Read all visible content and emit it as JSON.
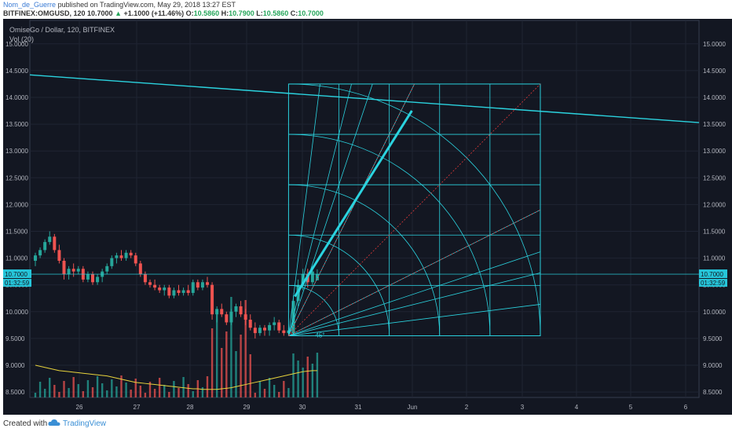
{
  "header": {
    "author": "Nom_de_Guerre",
    "published_text": "published on TradingView.com, May 29, 2018 13:27 EST",
    "symbol": "BITFINEX:OMGUSD, 120",
    "last": "10.7000",
    "change": "+1.1000 (+11.46%)",
    "o_label": "O:",
    "o_value": "10.5860",
    "h_label": "H:",
    "h_value": "10.7900",
    "l_label": "L:",
    "l_value": "10.5860",
    "c_label": "C:",
    "c_value": "10.7000"
  },
  "legend": {
    "title": "OmiseGo / Dollar, 120, BITFINEX",
    "volume": "Vol (20)"
  },
  "price_axis": {
    "labels": [
      "15.0000",
      "14.5000",
      "14.0000",
      "13.5000",
      "13.0000",
      "12.5000",
      "12.0000",
      "11.5000",
      "11.0000",
      "10.5000",
      "10.0000",
      "9.5000",
      "9.0000",
      "8.5000"
    ],
    "current_price": "10.7000",
    "countdown": "01:32:59"
  },
  "time_axis": {
    "labels": [
      "26",
      "27",
      "28",
      "29",
      "30",
      "31",
      "Jun",
      "2",
      "3",
      "4",
      "5",
      "6"
    ]
  },
  "gann": {
    "angle_label": "45°"
  },
  "colors": {
    "background": "#131722",
    "up": "#26a69a",
    "down": "#ef5350",
    "gann": "#2bd3df",
    "fan_red": "#e03a3a",
    "volume_ma": "#e7d33c"
  },
  "chart_data": {
    "type": "candlestick",
    "symbol": "OMGUSD",
    "exchange": "BITFINEX",
    "timeframe": "120",
    "ylim": [
      8.2,
      15.4
    ],
    "x_ticks": [
      "26",
      "27",
      "28",
      "29",
      "30",
      "31",
      "Jun",
      "2",
      "3",
      "4",
      "5",
      "6"
    ],
    "candles_ohlc": [
      [
        10.95,
        11.1,
        10.85,
        11.05
      ],
      [
        11.05,
        11.2,
        11.0,
        11.15
      ],
      [
        11.15,
        11.35,
        11.1,
        11.3
      ],
      [
        11.3,
        11.5,
        11.25,
        11.4
      ],
      [
        11.4,
        11.45,
        11.1,
        11.15
      ],
      [
        11.15,
        11.25,
        10.9,
        10.95
      ],
      [
        10.95,
        11.0,
        10.6,
        10.7
      ],
      [
        10.7,
        10.85,
        10.6,
        10.8
      ],
      [
        10.8,
        10.9,
        10.65,
        10.75
      ],
      [
        10.75,
        10.85,
        10.7,
        10.8
      ],
      [
        10.8,
        10.85,
        10.55,
        10.6
      ],
      [
        10.6,
        10.75,
        10.55,
        10.7
      ],
      [
        10.7,
        10.75,
        10.5,
        10.55
      ],
      [
        10.55,
        10.7,
        10.5,
        10.65
      ],
      [
        10.65,
        10.8,
        10.55,
        10.75
      ],
      [
        10.75,
        10.9,
        10.7,
        10.85
      ],
      [
        10.85,
        11.05,
        10.8,
        11.0
      ],
      [
        11.0,
        11.1,
        10.9,
        11.05
      ],
      [
        11.05,
        11.15,
        10.95,
        11.0
      ],
      [
        11.0,
        11.15,
        10.95,
        11.1
      ],
      [
        11.1,
        11.15,
        11.0,
        11.05
      ],
      [
        11.05,
        11.1,
        10.85,
        10.9
      ],
      [
        10.9,
        10.95,
        10.65,
        10.7
      ],
      [
        10.7,
        10.75,
        10.5,
        10.55
      ],
      [
        10.55,
        10.6,
        10.45,
        10.5
      ],
      [
        10.5,
        10.6,
        10.4,
        10.45
      ],
      [
        10.45,
        10.5,
        10.35,
        10.4
      ],
      [
        10.4,
        10.5,
        10.3,
        10.45
      ],
      [
        10.45,
        10.5,
        10.25,
        10.3
      ],
      [
        10.3,
        10.45,
        10.25,
        10.4
      ],
      [
        10.4,
        10.5,
        10.3,
        10.35
      ],
      [
        10.35,
        10.45,
        10.3,
        10.4
      ],
      [
        10.4,
        10.5,
        10.3,
        10.35
      ],
      [
        10.35,
        10.6,
        10.3,
        10.55
      ],
      [
        10.55,
        10.6,
        10.4,
        10.45
      ],
      [
        10.45,
        10.6,
        10.4,
        10.55
      ],
      [
        10.55,
        10.65,
        10.45,
        10.5
      ],
      [
        10.5,
        10.55,
        9.85,
        9.95
      ],
      [
        9.95,
        10.1,
        9.8,
        10.05
      ],
      [
        10.05,
        10.15,
        9.9,
        9.95
      ],
      [
        9.95,
        10.0,
        9.75,
        9.8
      ],
      [
        9.8,
        10.05,
        9.75,
        10.0
      ],
      [
        10.0,
        10.15,
        9.9,
        10.1
      ],
      [
        10.1,
        10.2,
        9.9,
        9.95
      ],
      [
        9.95,
        10.05,
        9.75,
        9.85
      ],
      [
        9.85,
        9.95,
        9.65,
        9.7
      ],
      [
        9.7,
        9.8,
        9.5,
        9.6
      ],
      [
        9.6,
        9.75,
        9.55,
        9.7
      ],
      [
        9.7,
        9.75,
        9.55,
        9.65
      ],
      [
        9.65,
        9.8,
        9.55,
        9.75
      ],
      [
        9.75,
        9.9,
        9.65,
        9.8
      ],
      [
        9.8,
        9.85,
        9.6,
        9.65
      ],
      [
        9.65,
        9.75,
        9.55,
        9.6
      ],
      [
        9.6,
        9.7,
        9.55,
        9.65
      ],
      [
        9.6,
        10.3,
        9.58,
        10.2
      ],
      [
        10.2,
        10.6,
        10.1,
        10.5
      ],
      [
        10.5,
        10.8,
        10.4,
        10.7
      ],
      [
        10.7,
        10.8,
        10.45,
        10.55
      ],
      [
        10.55,
        10.85,
        10.5,
        10.75
      ],
      [
        10.586,
        10.79,
        10.586,
        10.7
      ]
    ],
    "volume_ma_20": [
      9.0,
      8.98,
      8.96,
      8.94,
      8.92,
      8.9,
      8.89,
      8.88,
      8.87,
      8.86,
      8.85,
      8.84,
      8.83,
      8.82,
      8.81,
      8.8,
      8.78,
      8.76,
      8.74,
      8.72,
      8.7,
      8.68,
      8.67,
      8.66,
      8.65,
      8.64,
      8.63,
      8.62,
      8.61,
      8.6,
      8.59,
      8.58,
      8.57,
      8.56,
      8.56,
      8.55,
      8.55,
      8.55,
      8.55,
      8.56,
      8.57,
      8.58,
      8.6,
      8.62,
      8.64,
      8.66,
      8.68,
      8.7,
      8.72,
      8.74,
      8.76,
      8.78,
      8.8,
      8.82,
      8.84,
      8.86,
      8.88,
      8.89,
      8.9,
      8.9
    ],
    "trendline": {
      "from": [
        25.0,
        14.42
      ],
      "to": [
        31.75,
        13.53
      ]
    },
    "gann_box": {
      "x_from_index": 53,
      "price_from": 9.55,
      "price_to": 14.25
    }
  }
}
